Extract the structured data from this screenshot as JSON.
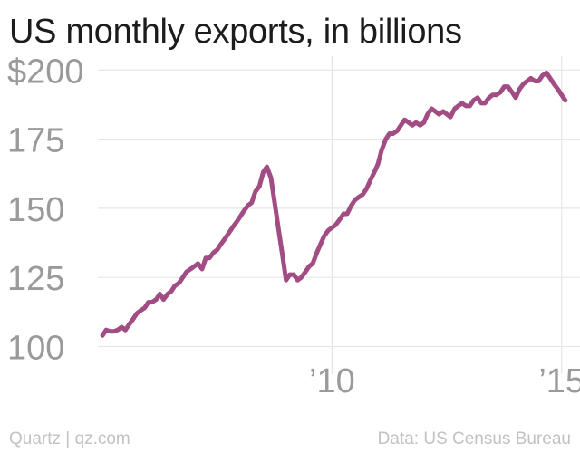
{
  "title": "US monthly exports, in billions",
  "source_left": "Quartz | qz.com",
  "source_right": "Data: US Census Bureau",
  "colors": {
    "line": "#a24c84",
    "grid": "#e6e6e6",
    "tick_text": "#9a9a9a"
  },
  "chart_data": {
    "type": "line",
    "title": "US monthly exports, in billions",
    "xlabel": "",
    "ylabel": "",
    "grid": true,
    "ylim": [
      90,
      205
    ],
    "xlim": [
      2004.9,
      2015.4
    ],
    "y_ticks": [
      {
        "value": 200,
        "label": "$200"
      },
      {
        "value": 175,
        "label": "175"
      },
      {
        "value": 150,
        "label": "150"
      },
      {
        "value": 125,
        "label": "125"
      },
      {
        "value": 100,
        "label": "100"
      }
    ],
    "x_ticks": [
      {
        "value": 2010,
        "label": "’10"
      },
      {
        "value": 2015,
        "label": "’15"
      }
    ],
    "series": [
      {
        "x": [
          2005.0,
          2005.08,
          2005.17,
          2005.25,
          2005.33,
          2005.42,
          2005.5,
          2005.58,
          2005.67,
          2005.75,
          2005.83,
          2005.92,
          2006.0,
          2006.08,
          2006.17,
          2006.25,
          2006.33,
          2006.42,
          2006.5,
          2006.58,
          2006.67,
          2006.75,
          2006.83,
          2006.92,
          2007.0,
          2007.08,
          2007.17,
          2007.25,
          2007.33,
          2007.42,
          2007.5,
          2007.58,
          2007.67,
          2007.75,
          2007.83,
          2007.92,
          2008.0,
          2008.08,
          2008.17,
          2008.25,
          2008.33,
          2008.42,
          2008.5,
          2008.58,
          2008.67,
          2008.75,
          2008.83,
          2008.92,
          2009.0,
          2009.08,
          2009.17,
          2009.25,
          2009.33,
          2009.42,
          2009.5,
          2009.58,
          2009.67,
          2009.75,
          2009.83,
          2009.92,
          2010.0,
          2010.08,
          2010.17,
          2010.25,
          2010.33,
          2010.42,
          2010.5,
          2010.58,
          2010.67,
          2010.75,
          2010.83,
          2010.92,
          2011.0,
          2011.08,
          2011.17,
          2011.25,
          2011.33,
          2011.42,
          2011.5,
          2011.58,
          2011.67,
          2011.75,
          2011.83,
          2011.92,
          2012.0,
          2012.08,
          2012.17,
          2012.25,
          2012.33,
          2012.42,
          2012.5,
          2012.58,
          2012.67,
          2012.75,
          2012.83,
          2012.92,
          2013.0,
          2013.08,
          2013.17,
          2013.25,
          2013.33,
          2013.42,
          2013.5,
          2013.58,
          2013.67,
          2013.75,
          2013.83,
          2013.92,
          2014.0,
          2014.08,
          2014.17,
          2014.25,
          2014.33,
          2014.42,
          2014.5,
          2014.58,
          2014.67,
          2014.75,
          2014.83,
          2014.92,
          2015.0,
          2015.08
        ],
        "y": [
          104,
          106,
          105.5,
          105.5,
          106,
          107,
          106,
          108,
          110,
          112,
          113,
          114,
          116,
          116,
          117,
          119,
          117,
          119,
          120,
          122,
          123,
          125,
          127,
          128,
          129,
          130,
          128,
          132,
          132,
          134,
          135,
          137,
          139,
          141,
          143,
          145,
          147,
          149,
          151,
          152,
          156,
          158,
          163,
          165,
          161,
          152,
          143,
          133,
          124,
          126,
          126,
          124,
          125,
          127,
          129,
          130,
          134,
          137,
          140,
          142,
          143,
          144,
          146,
          148,
          148,
          151,
          153,
          154,
          155,
          157,
          160,
          163,
          166,
          171,
          175,
          177,
          177,
          178,
          180,
          182,
          181,
          180,
          181,
          180,
          181,
          184,
          186,
          185,
          184,
          185,
          184,
          183,
          186,
          187,
          188,
          187,
          187,
          189,
          190,
          188,
          188,
          190,
          191,
          191,
          192,
          194,
          194,
          192,
          190,
          193,
          195,
          196,
          197,
          196,
          196,
          198,
          199,
          197,
          195,
          193,
          191,
          189
        ]
      }
    ]
  }
}
